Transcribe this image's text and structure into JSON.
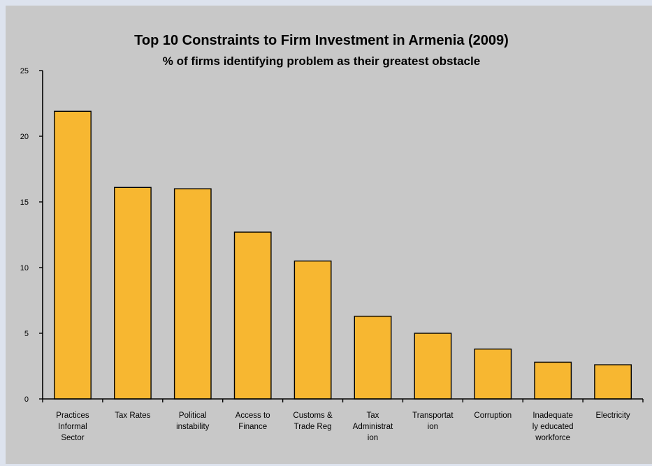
{
  "chart_data": {
    "type": "bar",
    "title": "Top 10 Constraints to Firm Investment in Armenia (2009)",
    "subtitle": "% of firms identifying problem as their greatest obstacle",
    "xlabel": "",
    "ylabel": "",
    "ylim": [
      0,
      25
    ],
    "yticks": [
      "0",
      "5",
      "10",
      "15",
      "20",
      "25"
    ],
    "grid": false,
    "legend": "none",
    "categories": [
      [
        "Practices",
        "Informal",
        "Sector"
      ],
      [
        "Tax Rates"
      ],
      [
        "Political",
        "instability"
      ],
      [
        "Access to",
        "Finance"
      ],
      [
        "Customs &",
        "Trade Reg"
      ],
      [
        "Tax",
        "Administrat",
        "ion"
      ],
      [
        "Transportat",
        "ion"
      ],
      [
        "Corruption"
      ],
      [
        "Inadequate",
        "ly educated",
        "workforce"
      ],
      [
        "Electricity"
      ]
    ],
    "values": [
      21.9,
      16.1,
      16.0,
      12.7,
      10.5,
      6.3,
      5.0,
      3.8,
      2.8,
      2.6
    ],
    "bar_color": "#f7b731",
    "bar_edge_color": "#000000"
  }
}
